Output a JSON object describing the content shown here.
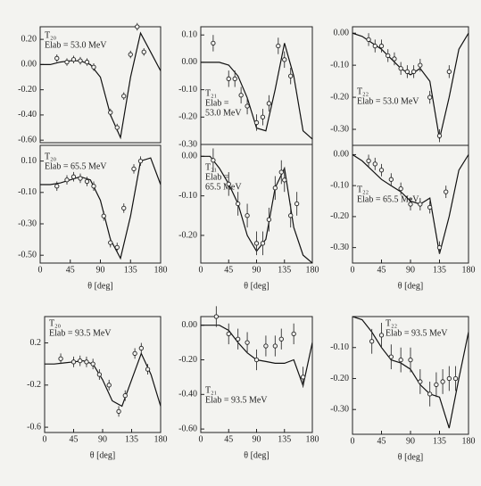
{
  "chart_data": [
    {
      "type": "line",
      "annotation": [
        "T₂₀",
        "Elab = 53.0 MeV"
      ],
      "xlim": [
        0,
        180
      ],
      "ylim": [
        -0.62,
        0.3
      ],
      "yticks": [
        {
          "value": 0.2,
          "label": "0.20"
        },
        {
          "value": 0,
          "label": "0.00"
        },
        {
          "value": -0.2,
          "label": "-0.20"
        },
        {
          "value": -0.4,
          "label": "-0.40"
        },
        {
          "value": -0.6,
          "label": "-0.60"
        }
      ],
      "curve": {
        "x": [
          0,
          15,
          30,
          45,
          60,
          75,
          90,
          105,
          120,
          135,
          150,
          165,
          180
        ],
        "values": [
          0,
          0,
          0.02,
          0.03,
          0.03,
          0,
          -0.1,
          -0.4,
          -0.58,
          -0.1,
          0.25,
          0.1,
          -0.05
        ]
      },
      "points": {
        "x": [
          25,
          40,
          50,
          60,
          70,
          80,
          105,
          115,
          125,
          135,
          145,
          155
        ],
        "values": [
          0.05,
          0.02,
          0.04,
          0.03,
          0.02,
          -0.02,
          -0.38,
          -0.5,
          -0.25,
          0.08,
          0.3,
          0.1
        ],
        "errors": [
          0.03,
          0.03,
          0.03,
          0.03,
          0.03,
          0.03,
          0.03,
          0.03,
          0.03,
          0.03,
          0.03,
          0.03
        ]
      }
    },
    {
      "type": "line",
      "annotation": [
        "T₂₁",
        "Elab =",
        "53.0 MeV"
      ],
      "xlim": [
        0,
        180
      ],
      "ylim": [
        -0.3,
        0.13
      ],
      "yticks": [
        {
          "value": 0.1,
          "label": "0.10"
        },
        {
          "value": 0,
          "label": "0.00"
        },
        {
          "value": -0.1,
          "label": "-0.10"
        },
        {
          "value": -0.2,
          "label": "-0.20"
        },
        {
          "value": -0.3,
          "label": "-0.30"
        }
      ],
      "curve": {
        "x": [
          0,
          15,
          30,
          45,
          60,
          75,
          90,
          105,
          120,
          135,
          150,
          165,
          180
        ],
        "values": [
          0,
          0,
          0,
          -0.01,
          -0.05,
          -0.13,
          -0.24,
          -0.25,
          -0.1,
          0.07,
          -0.05,
          -0.25,
          -0.28
        ]
      },
      "points": {
        "x": [
          20,
          45,
          55,
          65,
          75,
          90,
          100,
          110,
          125,
          135,
          145
        ],
        "values": [
          0.07,
          -0.06,
          -0.06,
          -0.12,
          -0.16,
          -0.22,
          -0.2,
          -0.15,
          0.06,
          0.01,
          -0.05
        ],
        "errors": [
          0.03,
          0.03,
          0.03,
          0.03,
          0.03,
          0.03,
          0.03,
          0.03,
          0.03,
          0.03,
          0.03
        ]
      }
    },
    {
      "type": "line",
      "annotation": [
        "T₂₂",
        "Elab = 53.0 MeV"
      ],
      "xlim": [
        0,
        180
      ],
      "ylim": [
        -0.35,
        0.02
      ],
      "yticks": [
        {
          "value": 0,
          "label": "0.00"
        },
        {
          "value": -0.1,
          "label": "-0.10"
        },
        {
          "value": -0.2,
          "label": "-0.20"
        },
        {
          "value": -0.3,
          "label": "-0.30"
        }
      ],
      "curve": {
        "x": [
          0,
          15,
          30,
          45,
          60,
          75,
          90,
          105,
          120,
          135,
          150,
          165,
          180
        ],
        "values": [
          0,
          -0.01,
          -0.03,
          -0.05,
          -0.08,
          -0.11,
          -0.13,
          -0.11,
          -0.15,
          -0.33,
          -0.2,
          -0.05,
          0
        ]
      },
      "points": {
        "x": [
          25,
          35,
          45,
          55,
          65,
          75,
          85,
          95,
          105,
          120,
          135,
          150
        ],
        "values": [
          -0.02,
          -0.04,
          -0.04,
          -0.07,
          -0.08,
          -0.11,
          -0.12,
          -0.12,
          -0.1,
          -0.2,
          -0.32,
          -0.12
        ],
        "errors": [
          0.02,
          0.02,
          0.02,
          0.02,
          0.02,
          0.02,
          0.02,
          0.02,
          0.02,
          0.02,
          0.02,
          0.02
        ]
      }
    },
    {
      "type": "line",
      "annotation": [
        "T₂₀",
        "Elab = 65.5 MeV"
      ],
      "xlim": [
        0,
        180
      ],
      "xticks": [
        0,
        45,
        90,
        135,
        180
      ],
      "xlabel": "θ [deg]",
      "ylim": [
        -0.55,
        0.2
      ],
      "yticks": [
        {
          "value": 0.1,
          "label": "0.10"
        },
        {
          "value": -0.1,
          "label": "-0.10"
        },
        {
          "value": -0.3,
          "label": "-0.30"
        },
        {
          "value": -0.5,
          "label": "-0.50"
        }
      ],
      "curve": {
        "x": [
          0,
          15,
          30,
          45,
          60,
          75,
          90,
          105,
          120,
          135,
          150,
          165,
          180
        ],
        "values": [
          -0.05,
          -0.05,
          -0.04,
          -0.02,
          0,
          -0.02,
          -0.15,
          -0.4,
          -0.52,
          -0.25,
          0.1,
          0.12,
          -0.05
        ]
      },
      "points": {
        "x": [
          25,
          40,
          50,
          60,
          70,
          80,
          95,
          105,
          115,
          125,
          140,
          150
        ],
        "values": [
          -0.06,
          -0.02,
          0,
          -0.01,
          -0.03,
          -0.06,
          -0.25,
          -0.42,
          -0.45,
          -0.2,
          0.05,
          0.1
        ],
        "errors": [
          0.03,
          0.03,
          0.03,
          0.03,
          0.03,
          0.03,
          0.03,
          0.03,
          0.03,
          0.03,
          0.03,
          0.03
        ]
      }
    },
    {
      "type": "line",
      "annotation": [
        "T₂₁",
        "Elab =",
        "65.5 MeV"
      ],
      "xlim": [
        0,
        180
      ],
      "xticks": [
        0,
        45,
        90,
        135,
        180
      ],
      "xlabel": "θ [deg]",
      "ylim": [
        -0.27,
        0.03
      ],
      "yticks": [
        {
          "value": 0,
          "label": "0.00"
        },
        {
          "value": -0.1,
          "label": "-0.10"
        },
        {
          "value": -0.2,
          "label": "-0.20"
        }
      ],
      "curve": {
        "x": [
          0,
          15,
          30,
          45,
          60,
          75,
          90,
          105,
          120,
          135,
          150,
          165,
          180
        ],
        "values": [
          0,
          0,
          -0.03,
          -0.07,
          -0.12,
          -0.2,
          -0.24,
          -0.21,
          -0.08,
          -0.03,
          -0.18,
          -0.25,
          -0.27
        ]
      },
      "points": {
        "x": [
          20,
          45,
          60,
          75,
          90,
          100,
          110,
          120,
          130,
          135,
          145,
          155
        ],
        "values": [
          -0.01,
          -0.07,
          -0.12,
          -0.15,
          -0.22,
          -0.22,
          -0.16,
          -0.08,
          -0.04,
          -0.06,
          -0.15,
          -0.12
        ],
        "errors": [
          0.03,
          0.03,
          0.03,
          0.03,
          0.03,
          0.03,
          0.03,
          0.03,
          0.03,
          0.03,
          0.03,
          0.03
        ]
      }
    },
    {
      "type": "line",
      "annotation": [
        "T₂₂",
        "Elab = 65.5 MeV"
      ],
      "xlim": [
        0,
        180
      ],
      "xticks": [
        0,
        45,
        90,
        135,
        180
      ],
      "xlabel": "θ [deg]",
      "ylim": [
        -0.35,
        0.03
      ],
      "yticks": [
        {
          "value": 0,
          "label": "0.00"
        },
        {
          "value": -0.1,
          "label": "-0.10"
        },
        {
          "value": -0.2,
          "label": "-0.20"
        },
        {
          "value": -0.3,
          "label": "-0.30"
        }
      ],
      "curve": {
        "x": [
          0,
          15,
          30,
          45,
          60,
          75,
          90,
          105,
          120,
          135,
          150,
          165,
          180
        ],
        "values": [
          0,
          -0.02,
          -0.05,
          -0.08,
          -0.1,
          -0.12,
          -0.15,
          -0.16,
          -0.14,
          -0.32,
          -0.2,
          -0.05,
          0
        ]
      },
      "points": {
        "x": [
          25,
          35,
          45,
          60,
          75,
          90,
          105,
          120,
          135,
          145
        ],
        "values": [
          -0.02,
          -0.03,
          -0.05,
          -0.08,
          -0.11,
          -0.16,
          -0.16,
          -0.17,
          -0.3,
          -0.12
        ],
        "errors": [
          0.02,
          0.02,
          0.02,
          0.02,
          0.02,
          0.02,
          0.02,
          0.02,
          0.02,
          0.02
        ]
      }
    },
    {
      "type": "line",
      "annotation": [
        "T₂₀",
        "Elab = 93.5 MeV"
      ],
      "xlim": [
        0,
        180
      ],
      "xticks": [
        0,
        45,
        90,
        135,
        180
      ],
      "xlabel": "θ [deg]",
      "ylim": [
        -0.65,
        0.45
      ],
      "yticks": [
        {
          "value": 0.2,
          "label": "0.2"
        },
        {
          "value": -0.2,
          "label": "-0.2"
        },
        {
          "value": -0.6,
          "label": "-0.6"
        }
      ],
      "curve": {
        "x": [
          0,
          15,
          30,
          45,
          60,
          75,
          90,
          105,
          120,
          135,
          150,
          165,
          180
        ],
        "values": [
          0,
          0,
          0.01,
          0.02,
          0.03,
          0,
          -0.15,
          -0.35,
          -0.4,
          -0.15,
          0.1,
          -0.1,
          -0.4
        ]
      },
      "points": {
        "x": [
          25,
          45,
          55,
          65,
          75,
          85,
          100,
          115,
          125,
          140,
          150,
          160
        ],
        "values": [
          0.05,
          0.02,
          0.03,
          0.02,
          0,
          -0.1,
          -0.2,
          -0.45,
          -0.3,
          0.1,
          0.15,
          -0.05
        ],
        "errors": [
          0.05,
          0.05,
          0.05,
          0.05,
          0.05,
          0.05,
          0.05,
          0.05,
          0.05,
          0.05,
          0.05,
          0.05
        ]
      }
    },
    {
      "type": "line",
      "annotation": [
        "T₂₁",
        "Elab = 93.5 MeV"
      ],
      "xlim": [
        0,
        180
      ],
      "xticks": [
        0,
        45,
        90,
        135,
        180
      ],
      "xlabel": "θ [deg]",
      "ylim": [
        -0.62,
        0.05
      ],
      "yticks": [
        {
          "value": 0,
          "label": "0.00"
        },
        {
          "value": -0.2,
          "label": "-0.20"
        },
        {
          "value": -0.4,
          "label": "-0.40"
        },
        {
          "value": -0.6,
          "label": "-0.60"
        }
      ],
      "curve": {
        "x": [
          0,
          15,
          30,
          45,
          60,
          75,
          90,
          105,
          120,
          135,
          150,
          165,
          180
        ],
        "values": [
          0,
          0,
          0,
          -0.03,
          -0.1,
          -0.16,
          -0.2,
          -0.21,
          -0.22,
          -0.22,
          -0.2,
          -0.35,
          -0.1
        ]
      },
      "points": {
        "x": [
          25,
          45,
          60,
          75,
          90,
          105,
          120,
          130,
          150,
          165
        ],
        "values": [
          0.05,
          -0.05,
          -0.08,
          -0.1,
          -0.2,
          -0.12,
          -0.12,
          -0.08,
          -0.05,
          -0.3
        ],
        "errors": [
          0.06,
          0.06,
          0.06,
          0.06,
          0.06,
          0.06,
          0.06,
          0.06,
          0.06,
          0.06
        ]
      }
    },
    {
      "type": "line",
      "annotation": [
        "T₂₂",
        "Elab = 93.5 MeV"
      ],
      "xlim": [
        0,
        180
      ],
      "xticks": [
        0,
        45,
        90,
        135,
        180
      ],
      "xlabel": "θ [deg]",
      "ylim": [
        -0.38,
        0
      ],
      "yticks": [
        {
          "value": -0.1,
          "label": "-0.10"
        },
        {
          "value": -0.2,
          "label": "-0.20"
        },
        {
          "value": -0.3,
          "label": "-0.30"
        }
      ],
      "curve": {
        "x": [
          0,
          15,
          30,
          45,
          60,
          75,
          90,
          105,
          120,
          135,
          150,
          165,
          180
        ],
        "values": [
          0,
          -0.01,
          -0.05,
          -0.1,
          -0.14,
          -0.15,
          -0.17,
          -0.22,
          -0.25,
          -0.26,
          -0.36,
          -0.2,
          -0.05
        ]
      },
      "points": {
        "x": [
          30,
          45,
          60,
          75,
          90,
          105,
          120,
          130,
          140,
          150,
          160
        ],
        "values": [
          -0.08,
          -0.06,
          -0.13,
          -0.14,
          -0.14,
          -0.21,
          -0.25,
          -0.22,
          -0.21,
          -0.2,
          -0.2
        ],
        "errors": [
          0.04,
          0.04,
          0.04,
          0.04,
          0.04,
          0.04,
          0.04,
          0.04,
          0.04,
          0.04,
          0.04
        ]
      }
    }
  ]
}
